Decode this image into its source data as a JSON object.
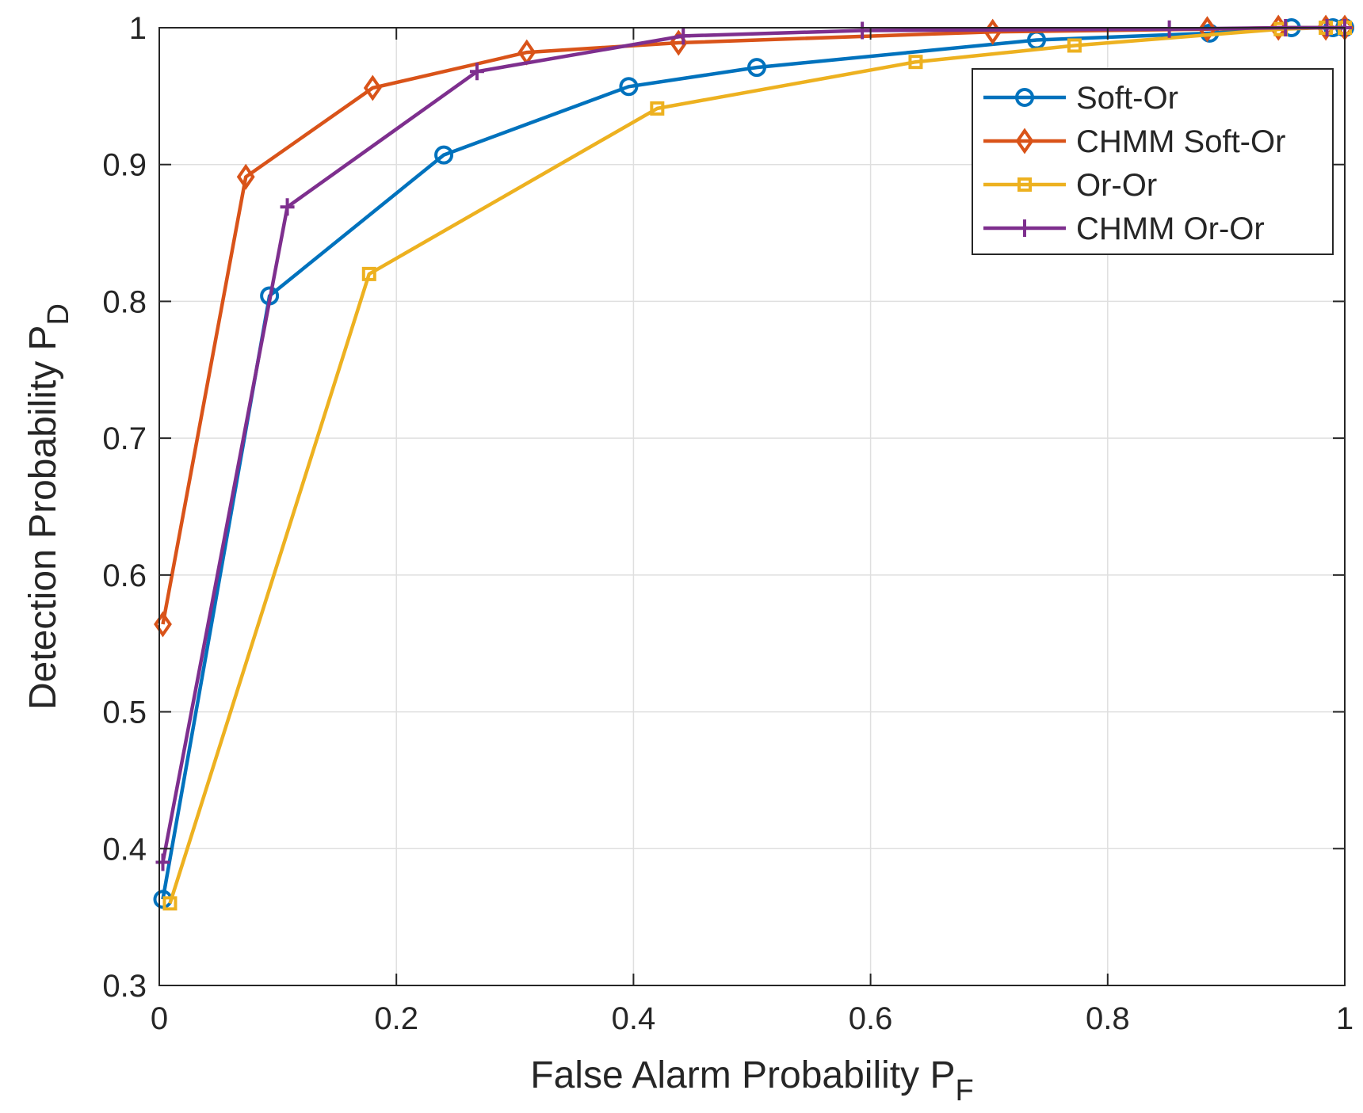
{
  "chart_data": {
    "type": "line",
    "title": "",
    "xlabel": "False Alarm Probability P",
    "xlabel_sub": "F",
    "ylabel": "Detection Probability P",
    "ylabel_sub": "D",
    "xlim": [
      0,
      1
    ],
    "ylim": [
      0.3,
      1
    ],
    "xticks": [
      0,
      0.2,
      0.4,
      0.6,
      0.8,
      1
    ],
    "xtick_labels": [
      "0",
      "0.2",
      "0.4",
      "0.6",
      "0.8",
      "1"
    ],
    "yticks": [
      0.3,
      0.4,
      0.5,
      0.6,
      0.7,
      0.8,
      0.9,
      1
    ],
    "ytick_labels": [
      "0.3",
      "0.4",
      "0.5",
      "0.6",
      "0.7",
      "0.8",
      "0.9",
      "1"
    ],
    "grid": true,
    "legend_position": "top-right",
    "series": [
      {
        "name": "Soft-Or",
        "color": "#0072BD",
        "marker": "circle",
        "x": [
          0.003,
          0.093,
          0.24,
          0.396,
          0.504,
          0.74,
          0.886,
          0.955,
          0.99,
          1.0
        ],
        "y": [
          0.363,
          0.804,
          0.907,
          0.957,
          0.971,
          0.991,
          0.996,
          1.0,
          1.0,
          1.0
        ]
      },
      {
        "name": "CHMM Soft-Or",
        "color": "#D95319",
        "marker": "diamond",
        "x": [
          0.003,
          0.073,
          0.18,
          0.31,
          0.438,
          0.703,
          0.884,
          0.944,
          0.984,
          1.0
        ],
        "y": [
          0.564,
          0.891,
          0.956,
          0.982,
          0.989,
          0.997,
          0.999,
          1.0,
          1.0,
          1.0
        ]
      },
      {
        "name": "Or-Or",
        "color": "#EDB120",
        "marker": "square",
        "x": [
          0.009,
          0.177,
          0.42,
          0.638,
          0.772,
          0.946,
          0.984,
          1.0
        ],
        "y": [
          0.36,
          0.82,
          0.941,
          0.975,
          0.987,
          0.999,
          1.0,
          1.0
        ]
      },
      {
        "name": "CHMM Or-Or",
        "color": "#7E2F8E",
        "marker": "plus",
        "x": [
          0.003,
          0.108,
          0.268,
          0.442,
          0.593,
          0.852,
          0.95,
          0.985,
          1.0
        ],
        "y": [
          0.39,
          0.869,
          0.968,
          0.994,
          0.998,
          0.999,
          1.0,
          1.0,
          1.0
        ]
      }
    ]
  }
}
